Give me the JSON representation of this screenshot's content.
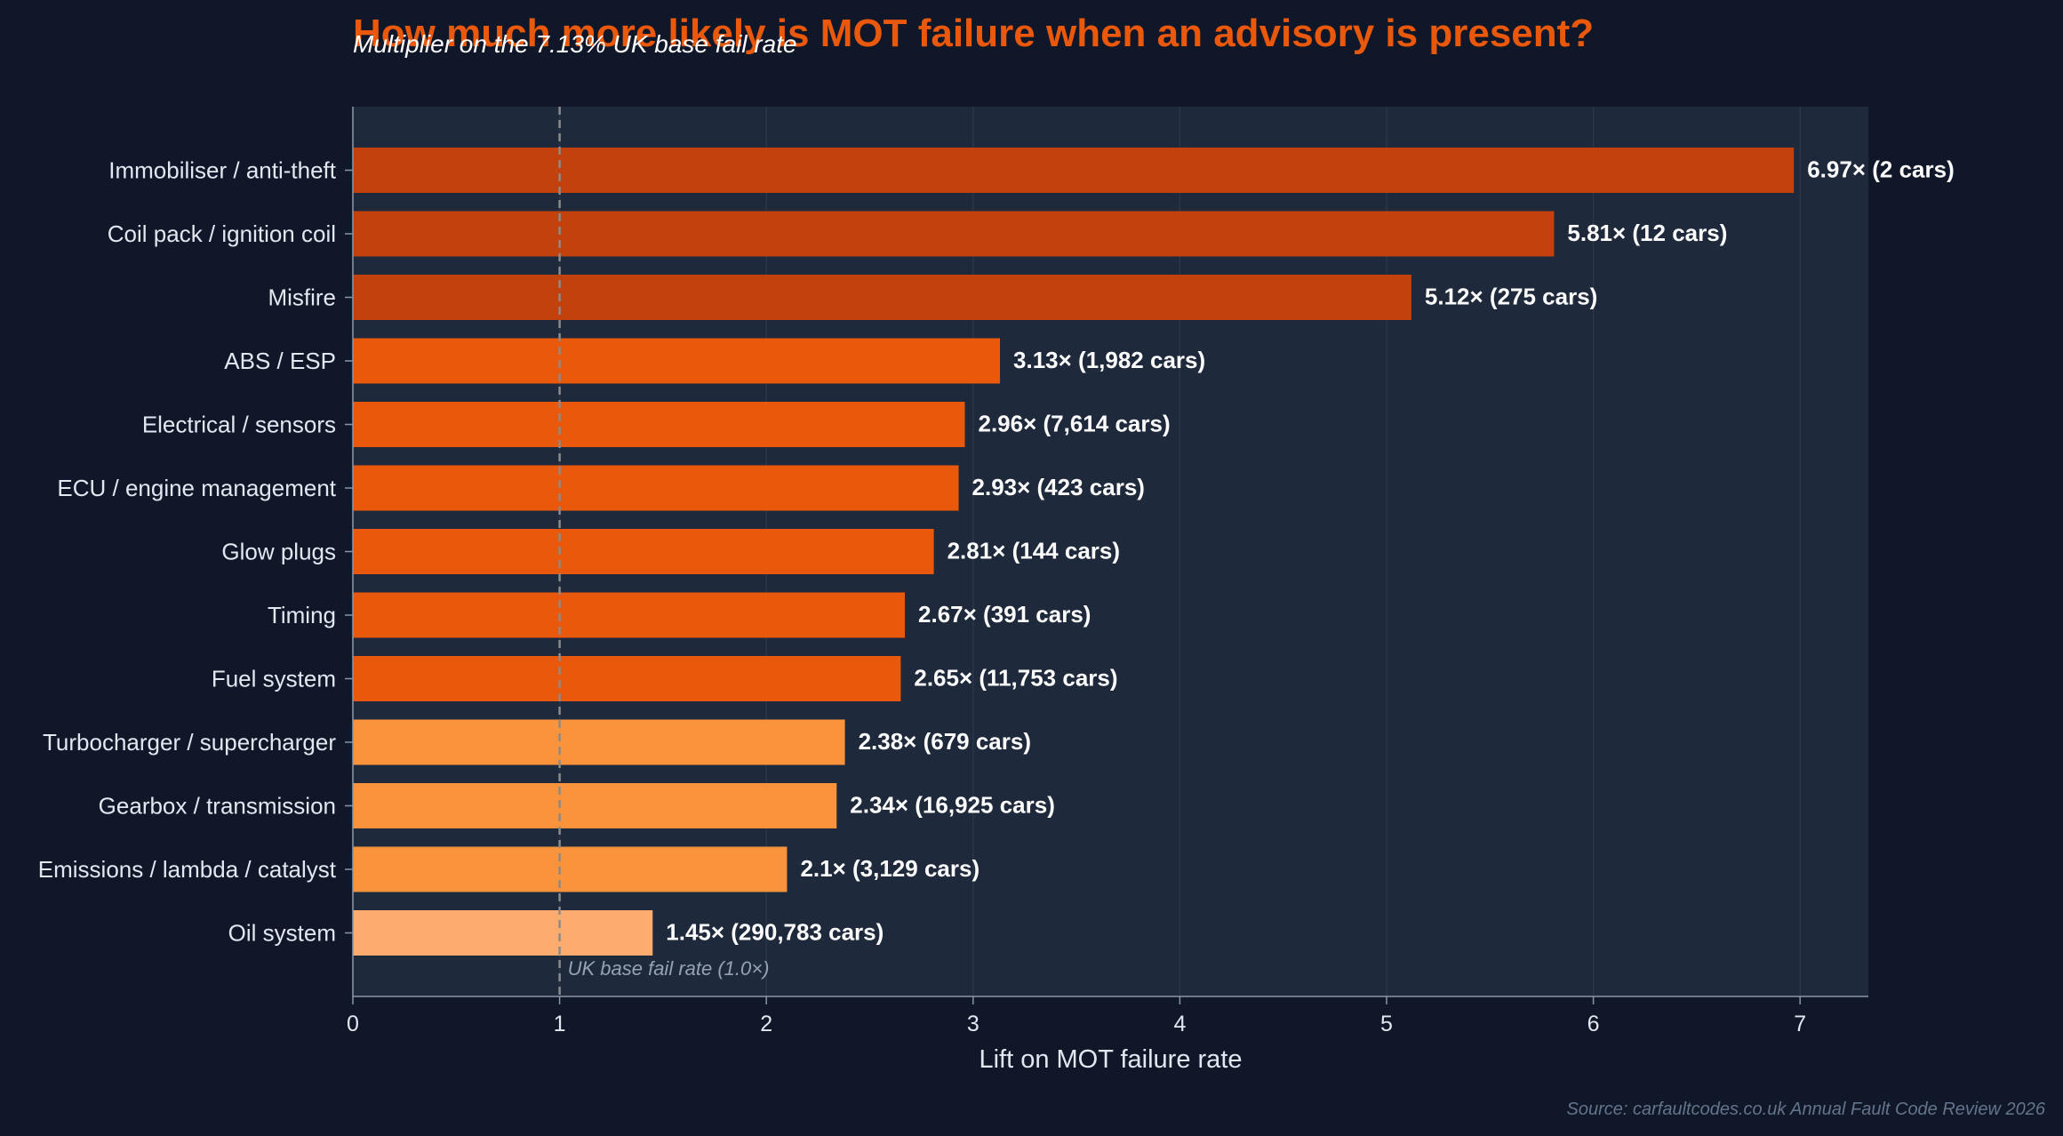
{
  "chart_data": {
    "type": "bar",
    "orientation": "horizontal",
    "title": "How much more likely is MOT failure when an advisory is present?",
    "subtitle": "Multiplier on the 7.13% UK base fail rate",
    "xlabel": "Lift on MOT failure rate",
    "ylabel": "",
    "xlim": [
      0,
      7.3
    ],
    "xticks": [
      "0",
      "1",
      "2",
      "3",
      "4",
      "5",
      "6",
      "7"
    ],
    "grid": "vertical",
    "reference_line": {
      "value": 1,
      "label": "UK base fail rate (1.0×)"
    },
    "categories": [
      "Immobiliser / anti-theft",
      "Coil pack / ignition coil",
      "Misfire",
      "ABS / ESP",
      "Electrical / sensors",
      "ECU / engine management",
      "Glow plugs",
      "Timing",
      "Fuel system",
      "Turbocharger / supercharger",
      "Gearbox / transmission",
      "Emissions / lambda / catalyst",
      "Oil system"
    ],
    "values": [
      6.97,
      5.81,
      5.12,
      3.13,
      2.96,
      2.93,
      2.81,
      2.67,
      2.65,
      2.38,
      2.34,
      2.1,
      1.45
    ],
    "data_labels": [
      "6.97× (2 cars)",
      "5.81× (12 cars)",
      "5.12× (275 cars)",
      "3.13× (1,982 cars)",
      "2.96× (7,614 cars)",
      "2.93× (423 cars)",
      "2.81× (144 cars)",
      "2.67× (391 cars)",
      "2.65× (11,753 cars)",
      "2.38× (679 cars)",
      "2.34× (16,925 cars)",
      "2.1× (3,129 cars)",
      "1.45× (290,783 cars)"
    ],
    "bar_colors": [
      "#c2410c",
      "#c2410c",
      "#c2410c",
      "#ea580c",
      "#ea580c",
      "#ea580c",
      "#ea580c",
      "#ea580c",
      "#ea580c",
      "#fb923c",
      "#fb923c",
      "#fb923c",
      "#fdab6f"
    ],
    "source": "Source: carfaultcodes.co.uk Annual Fault Code Review 2026"
  },
  "colors": {
    "background": "#0f1729",
    "plot_area": "#1e293b",
    "title": "#ea580c",
    "text": "#e2e8f0",
    "muted": "#94a3b8",
    "source": "#64748b"
  }
}
